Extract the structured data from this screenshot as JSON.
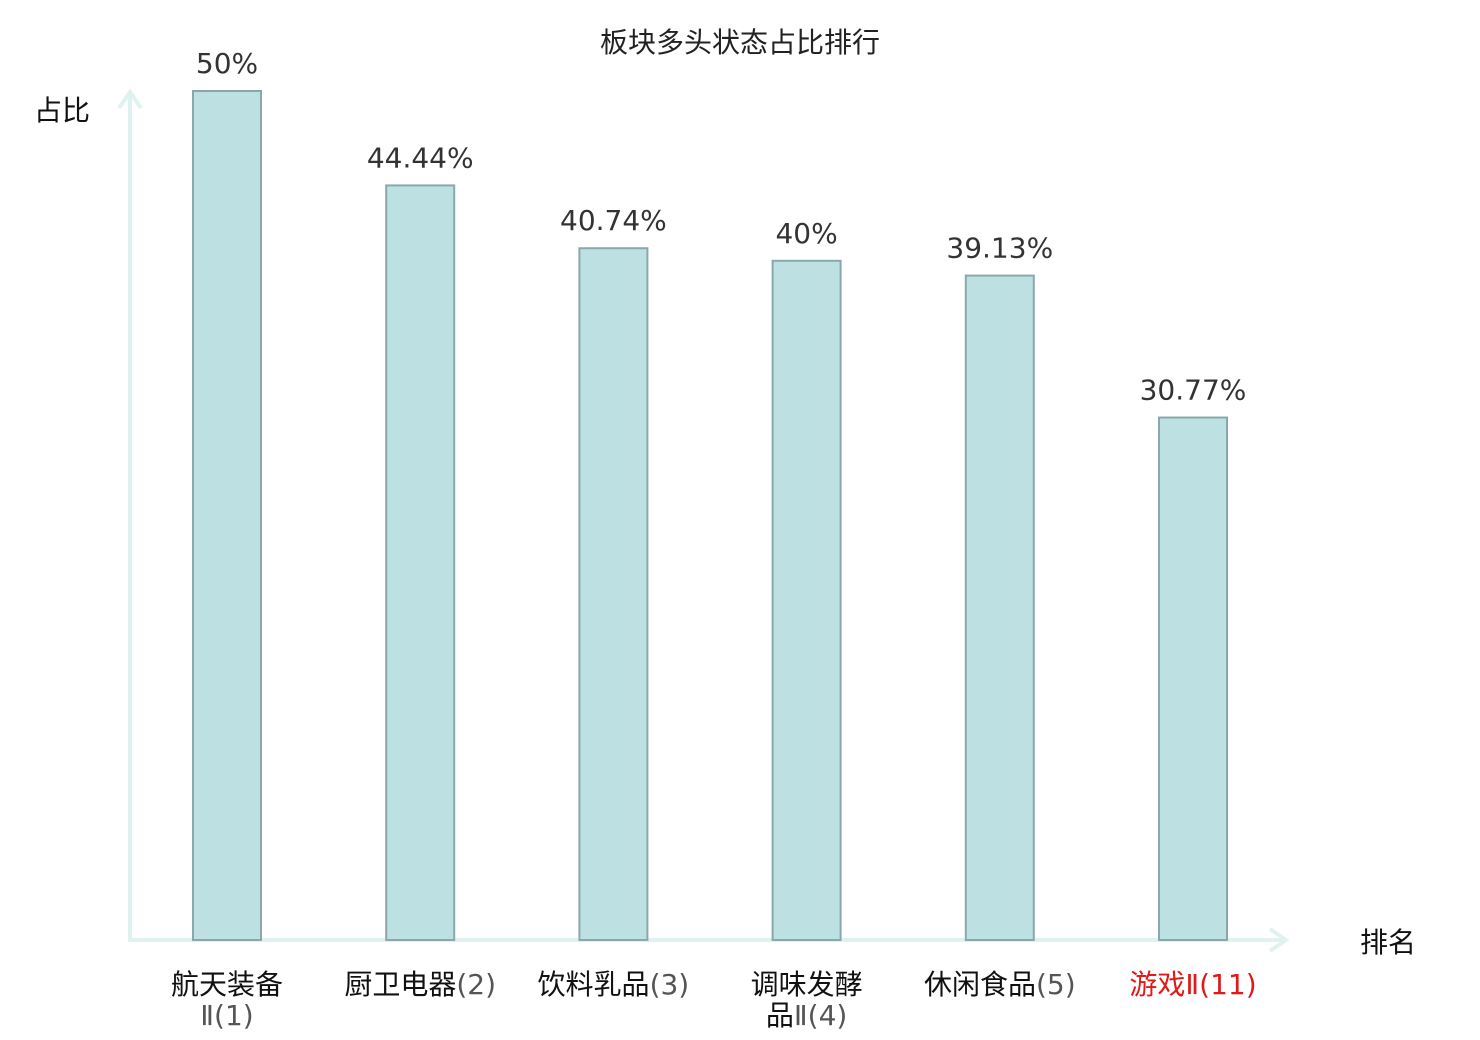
{
  "chart_data": {
    "type": "bar",
    "title": "板块多头状态占比排行",
    "ylabel": "占比",
    "xlabel": "排名",
    "ylim": [
      0,
      50
    ],
    "grid": false,
    "categories": [
      {
        "lines": [
          {
            "name": "航天装备",
            "rank": ""
          },
          {
            "name": "",
            "rank": "Ⅱ(1)"
          }
        ]
      },
      {
        "lines": [
          {
            "name": "厨卫电器",
            "rank": "(2)"
          }
        ]
      },
      {
        "lines": [
          {
            "name": "饮料乳品",
            "rank": "(3)"
          }
        ]
      },
      {
        "lines": [
          {
            "name": "调味发酵",
            "rank": ""
          },
          {
            "name": "品",
            "rank": "Ⅱ(4)"
          }
        ]
      },
      {
        "lines": [
          {
            "name": "休闲食品",
            "rank": "(5)"
          }
        ]
      },
      {
        "lines": [
          {
            "name": "游戏",
            "rank": "Ⅱ(11)"
          }
        ],
        "highlight": true
      }
    ],
    "values": [
      50,
      44.44,
      40.74,
      40,
      39.13,
      30.77
    ],
    "value_labels": [
      "50%",
      "44.44%",
      "40.74%",
      "40%",
      "39.13%",
      "30.77%"
    ],
    "colors": {
      "bar_fill": "#bde0e3",
      "bar_stroke": "#8aa8ab",
      "axis": "#dff2ef",
      "highlight": "#e0191a",
      "name": "#111111",
      "rank": "#555555"
    }
  }
}
